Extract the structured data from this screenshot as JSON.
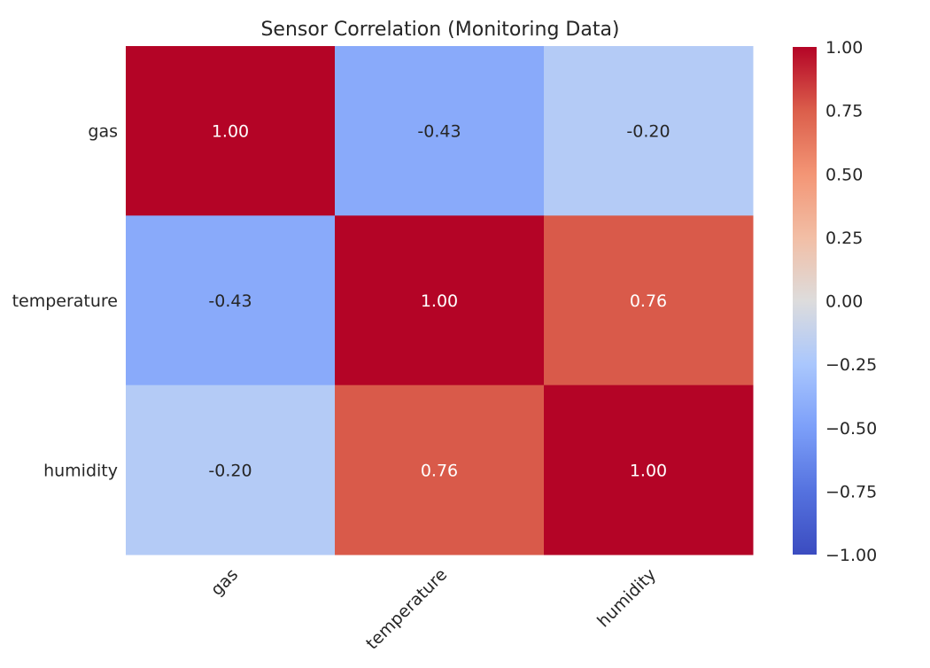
{
  "chart_data": {
    "type": "heatmap",
    "title": "Sensor Correlation (Monitoring Data)",
    "xlabel": "",
    "ylabel": "",
    "x_categories": [
      "gas",
      "temperature",
      "humidity"
    ],
    "y_categories": [
      "gas",
      "temperature",
      "humidity"
    ],
    "values": [
      [
        1.0,
        -0.43,
        -0.2
      ],
      [
        -0.43,
        1.0,
        0.76
      ],
      [
        -0.2,
        0.76,
        1.0
      ]
    ],
    "cell_labels": [
      [
        "1.00",
        "-0.43",
        "-0.20"
      ],
      [
        "-0.43",
        "1.00",
        "0.76"
      ],
      [
        "-0.20",
        "0.76",
        "1.00"
      ]
    ],
    "colormap": "coolwarm",
    "vmin": -1.0,
    "vmax": 1.0,
    "colorbar_ticks": [
      1.0,
      0.75,
      0.5,
      0.25,
      0.0,
      -0.25,
      -0.5,
      -0.75,
      -1.0
    ],
    "colorbar_tick_labels": [
      "1.00",
      "0.75",
      "0.50",
      "0.25",
      "0.00",
      "−0.25",
      "−0.50",
      "−0.75",
      "−1.00"
    ],
    "colorbar_colors": {
      "max": "#b40426",
      "mid": "#dddddd",
      "min": "#3b4cc0"
    },
    "grid": false
  }
}
